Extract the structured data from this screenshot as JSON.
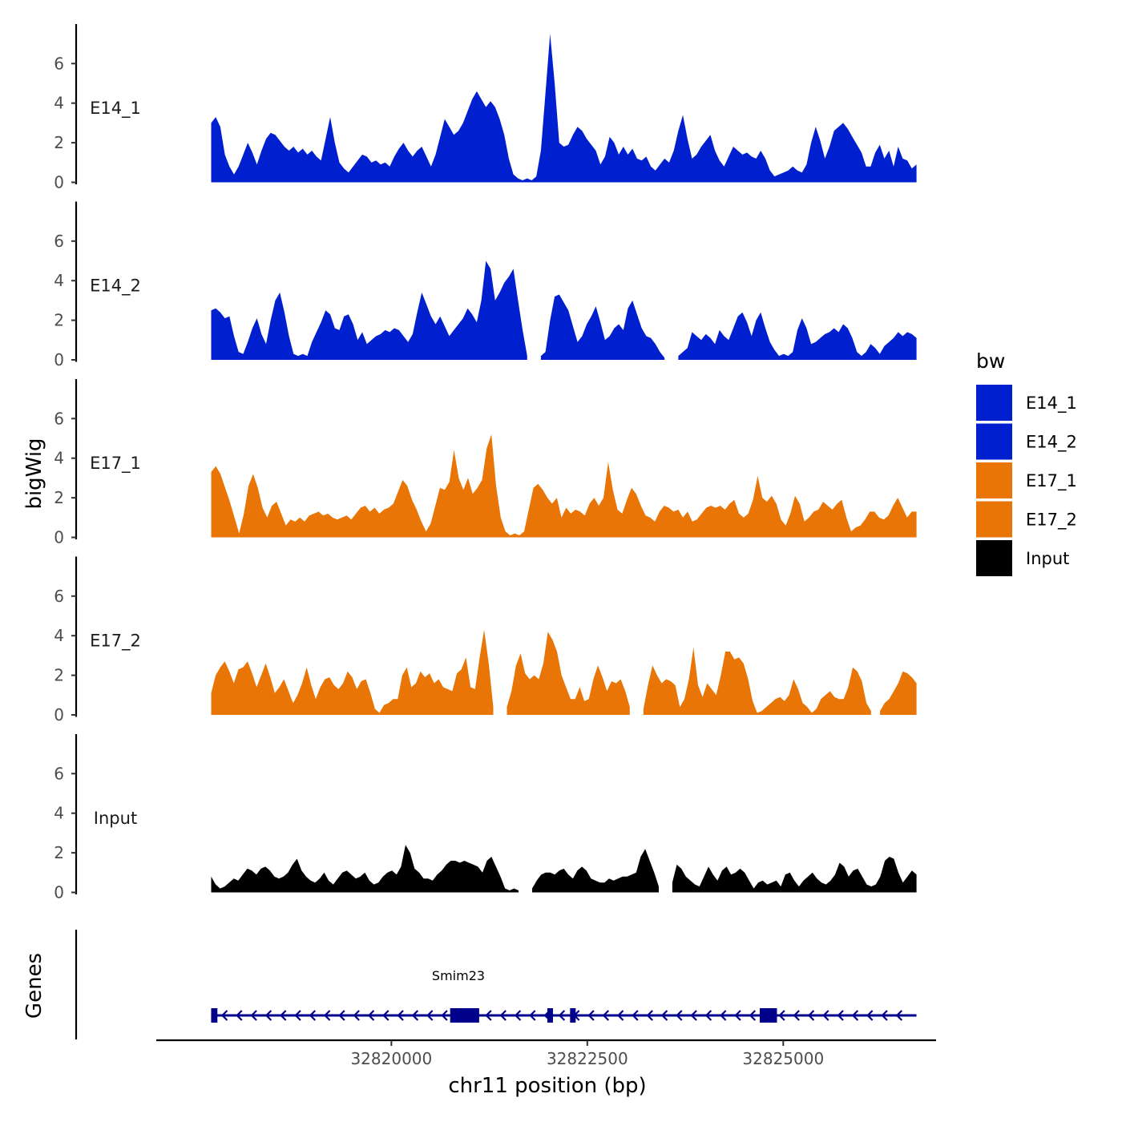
{
  "chart_data": {
    "type": "area",
    "xlabel": "chr11 position (bp)",
    "ylabel_tracks": "bigWig",
    "ylabel_genes": "Genes",
    "xlim": [
      32817000,
      32826950
    ],
    "x_ticks": [
      32820000,
      32822500,
      32825000
    ],
    "x_tick_labels": [
      "32820000",
      "32822500",
      "32825000"
    ],
    "y_range": [
      0,
      7.8
    ],
    "y_ticks": [
      0,
      2,
      4,
      6
    ],
    "y_tick_labels": [
      "0",
      "2",
      "4",
      "6"
    ],
    "x_start": 32817700,
    "x_end": 32826700,
    "legend": {
      "title": "bw",
      "entries": [
        {
          "label": "E14_1",
          "color": "#0020D0"
        },
        {
          "label": "E14_2",
          "color": "#0020D0"
        },
        {
          "label": "E17_1",
          "color": "#E87506"
        },
        {
          "label": "E17_2",
          "color": "#E87506"
        },
        {
          "label": "Input",
          "color": "#000000"
        }
      ]
    },
    "series": [
      {
        "name": "E14_1",
        "color": "#0020D0",
        "values": [
          3.0,
          3.3,
          2.8,
          1.4,
          0.8,
          0.4,
          0.8,
          1.4,
          2.0,
          1.5,
          0.9,
          1.6,
          2.2,
          2.5,
          2.4,
          2.1,
          1.8,
          1.6,
          1.8,
          1.5,
          1.7,
          1.4,
          1.6,
          1.3,
          1.1,
          2.2,
          3.3,
          2.0,
          1.0,
          0.7,
          0.5,
          0.8,
          1.1,
          1.4,
          1.3,
          1.0,
          1.1,
          0.9,
          1.0,
          0.8,
          1.3,
          1.7,
          2.0,
          1.6,
          1.3,
          1.6,
          1.8,
          1.3,
          0.8,
          1.4,
          2.3,
          3.2,
          2.8,
          2.4,
          2.6,
          3.0,
          3.6,
          4.2,
          4.6,
          4.2,
          3.8,
          4.1,
          3.8,
          3.2,
          2.4,
          1.2,
          0.4,
          0.2,
          0.1,
          0.2,
          0.1,
          0.3,
          1.6,
          4.5,
          7.5,
          5.0,
          2.0,
          1.8,
          1.9,
          2.4,
          2.8,
          2.6,
          2.2,
          1.9,
          1.6,
          0.9,
          1.3,
          2.3,
          2.0,
          1.4,
          1.8,
          1.4,
          1.7,
          1.2,
          1.1,
          1.3,
          0.8,
          0.6,
          0.9,
          1.2,
          1.0,
          1.6,
          2.6,
          3.4,
          2.2,
          1.2,
          1.4,
          1.8,
          2.1,
          2.4,
          1.6,
          1.1,
          0.8,
          1.3,
          1.8,
          1.6,
          1.4,
          1.5,
          1.3,
          1.2,
          1.6,
          1.2,
          0.6,
          0.3,
          0.4,
          0.5,
          0.6,
          0.8,
          0.6,
          0.5,
          0.9,
          2.0,
          2.8,
          2.1,
          1.2,
          1.8,
          2.6,
          2.8,
          3.0,
          2.7,
          2.3,
          1.9,
          1.5,
          0.8,
          0.8,
          1.5,
          1.9,
          1.2,
          1.6,
          0.8,
          1.8,
          1.2,
          1.1,
          0.7,
          0.9
        ]
      },
      {
        "name": "E14_2",
        "color": "#0020D0",
        "values": [
          2.5,
          2.6,
          2.4,
          2.1,
          2.2,
          1.2,
          0.4,
          0.3,
          0.9,
          1.6,
          2.1,
          1.3,
          0.8,
          2.0,
          3.0,
          3.4,
          2.4,
          1.2,
          0.3,
          0.2,
          0.3,
          0.2,
          0.9,
          1.4,
          1.9,
          2.5,
          2.3,
          1.6,
          1.5,
          2.2,
          2.3,
          1.8,
          1.0,
          1.4,
          0.8,
          1.0,
          1.2,
          1.3,
          1.5,
          1.4,
          1.6,
          1.5,
          1.2,
          0.9,
          1.3,
          2.4,
          3.4,
          2.8,
          2.2,
          1.8,
          2.2,
          1.7,
          1.2,
          1.5,
          1.8,
          2.1,
          2.6,
          2.3,
          1.9,
          3.0,
          5.0,
          4.6,
          3.0,
          3.4,
          3.9,
          4.2,
          4.6,
          3.0,
          1.5,
          0.2,
          null,
          null,
          0.2,
          0.4,
          2.0,
          3.2,
          3.3,
          2.9,
          2.5,
          1.7,
          0.9,
          1.2,
          1.8,
          2.2,
          2.7,
          1.9,
          1.0,
          1.2,
          1.6,
          1.8,
          1.5,
          2.6,
          3.0,
          2.3,
          1.6,
          1.2,
          1.1,
          0.8,
          0.4,
          0.1,
          null,
          null,
          0.2,
          0.4,
          0.6,
          1.4,
          1.2,
          1.0,
          1.3,
          1.1,
          0.8,
          1.5,
          1.2,
          1.0,
          1.6,
          2.2,
          2.4,
          1.9,
          1.2,
          2.0,
          2.4,
          1.6,
          0.9,
          0.5,
          0.2,
          0.3,
          0.2,
          0.4,
          1.5,
          2.1,
          1.6,
          0.8,
          0.9,
          1.1,
          1.3,
          1.4,
          1.6,
          1.4,
          1.8,
          1.6,
          1.1,
          0.4,
          0.2,
          0.4,
          0.8,
          0.6,
          0.3,
          0.7,
          0.9,
          1.1,
          1.4,
          1.2,
          1.4,
          1.3,
          1.1
        ]
      },
      {
        "name": "E17_1",
        "color": "#E87506",
        "values": [
          3.3,
          3.6,
          3.2,
          2.5,
          1.8,
          1.0,
          0.2,
          1.2,
          2.6,
          3.2,
          2.5,
          1.5,
          1.0,
          1.6,
          1.8,
          1.2,
          0.6,
          0.9,
          0.8,
          1.0,
          0.8,
          1.1,
          1.2,
          1.3,
          1.1,
          1.2,
          1.0,
          0.9,
          1.0,
          1.1,
          0.9,
          1.2,
          1.5,
          1.6,
          1.3,
          1.5,
          1.2,
          1.4,
          1.5,
          1.7,
          2.3,
          2.9,
          2.6,
          1.9,
          1.4,
          0.8,
          0.3,
          0.7,
          1.6,
          2.5,
          2.4,
          2.8,
          4.4,
          3.0,
          2.4,
          3.0,
          2.2,
          2.5,
          2.9,
          4.5,
          5.2,
          2.6,
          1.0,
          0.3,
          0.1,
          0.2,
          0.1,
          0.3,
          1.4,
          2.5,
          2.7,
          2.4,
          2.0,
          1.7,
          2.0,
          1.0,
          1.5,
          1.2,
          1.4,
          1.3,
          1.1,
          1.7,
          2.0,
          1.6,
          2.0,
          3.8,
          2.4,
          1.4,
          1.2,
          1.9,
          2.5,
          2.2,
          1.6,
          1.1,
          1.0,
          0.8,
          1.3,
          1.6,
          1.5,
          1.3,
          1.4,
          1.0,
          1.3,
          0.8,
          0.9,
          1.2,
          1.5,
          1.6,
          1.5,
          1.6,
          1.4,
          1.7,
          1.9,
          1.2,
          1.0,
          1.2,
          1.9,
          3.1,
          2.0,
          1.8,
          2.1,
          1.7,
          0.9,
          0.6,
          1.2,
          2.1,
          1.7,
          0.8,
          1.0,
          1.3,
          1.4,
          1.8,
          1.6,
          1.4,
          1.7,
          1.9,
          1.0,
          0.3,
          0.5,
          0.6,
          0.9,
          1.3,
          1.3,
          1.0,
          0.9,
          1.1,
          1.6,
          2.0,
          1.5,
          1.0,
          1.3,
          1.3
        ]
      },
      {
        "name": "E17_2",
        "color": "#E87506",
        "values": [
          1.1,
          2.0,
          2.4,
          2.7,
          2.2,
          1.6,
          2.3,
          2.4,
          2.7,
          2.1,
          1.4,
          2.0,
          2.6,
          1.9,
          1.1,
          1.4,
          1.8,
          1.2,
          0.6,
          1.0,
          1.6,
          2.4,
          1.5,
          0.8,
          1.4,
          1.8,
          1.9,
          1.5,
          1.3,
          1.6,
          2.2,
          1.9,
          1.3,
          1.7,
          1.8,
          1.1,
          0.3,
          0.1,
          0.5,
          0.6,
          0.8,
          0.8,
          2.0,
          2.4,
          1.4,
          1.6,
          2.2,
          1.9,
          2.1,
          1.6,
          1.8,
          1.4,
          1.3,
          1.2,
          2.1,
          2.3,
          2.9,
          1.4,
          1.3,
          2.9,
          4.3,
          2.6,
          0.4,
          null,
          null,
          0.4,
          1.2,
          2.5,
          3.1,
          2.1,
          1.8,
          2.0,
          1.8,
          2.6,
          4.2,
          3.8,
          3.2,
          2.0,
          1.4,
          0.8,
          0.8,
          1.4,
          0.7,
          0.8,
          1.8,
          2.5,
          1.9,
          1.2,
          1.7,
          1.6,
          1.8,
          1.2,
          0.4,
          null,
          null,
          0.3,
          1.5,
          2.5,
          2.0,
          1.6,
          1.8,
          1.7,
          1.5,
          0.4,
          0.8,
          1.8,
          3.4,
          1.5,
          0.9,
          1.6,
          1.3,
          1.0,
          2.0,
          3.2,
          3.2,
          2.8,
          2.9,
          2.6,
          1.8,
          0.7,
          0.1,
          0.2,
          0.4,
          0.6,
          0.8,
          0.9,
          0.7,
          1.0,
          1.8,
          1.3,
          0.6,
          0.4,
          0.1,
          0.3,
          0.8,
          1.0,
          1.2,
          0.9,
          0.8,
          0.8,
          1.4,
          2.4,
          2.2,
          1.7,
          0.6,
          0.2,
          null,
          0.2,
          0.6,
          0.8,
          1.2,
          1.6,
          2.2,
          2.1,
          1.9,
          1.6
        ]
      },
      {
        "name": "Input",
        "color": "#000000",
        "values": [
          0.8,
          0.4,
          0.2,
          0.3,
          0.5,
          0.7,
          0.6,
          0.9,
          1.2,
          1.1,
          0.9,
          1.2,
          1.3,
          1.1,
          0.8,
          0.7,
          0.8,
          1.0,
          1.4,
          1.7,
          1.1,
          0.8,
          0.6,
          0.5,
          0.7,
          1.0,
          0.6,
          0.4,
          0.7,
          1.0,
          1.1,
          0.9,
          0.7,
          0.8,
          1.0,
          0.6,
          0.4,
          0.5,
          0.8,
          1.0,
          1.1,
          0.9,
          1.3,
          2.4,
          2.0,
          1.2,
          1.0,
          0.7,
          0.7,
          0.6,
          0.9,
          1.1,
          1.4,
          1.6,
          1.6,
          1.5,
          1.6,
          1.5,
          1.4,
          1.3,
          1.0,
          1.6,
          1.8,
          1.3,
          0.8,
          0.2,
          0.1,
          0.2,
          0.1,
          null,
          null,
          0.2,
          0.6,
          0.9,
          1.0,
          1.0,
          0.9,
          1.1,
          1.2,
          0.9,
          0.7,
          1.1,
          1.3,
          1.1,
          0.7,
          0.6,
          0.5,
          0.5,
          0.7,
          0.6,
          0.7,
          0.8,
          0.8,
          0.9,
          1.0,
          1.8,
          2.2,
          1.6,
          1.0,
          0.3,
          null,
          null,
          0.5,
          1.4,
          1.2,
          0.8,
          0.6,
          0.4,
          0.3,
          0.8,
          1.3,
          0.9,
          0.6,
          1.1,
          1.3,
          0.9,
          1.0,
          1.2,
          1.0,
          0.6,
          0.2,
          0.5,
          0.6,
          0.4,
          0.5,
          0.6,
          0.3,
          0.9,
          1.0,
          0.6,
          0.3,
          0.6,
          0.8,
          1.0,
          0.7,
          0.5,
          0.4,
          0.6,
          0.9,
          1.5,
          1.3,
          0.8,
          1.1,
          1.2,
          0.8,
          0.4,
          0.3,
          0.4,
          0.8,
          1.6,
          1.8,
          1.7,
          1.0,
          0.5,
          0.8,
          1.1,
          0.9
        ]
      }
    ],
    "genes": [
      {
        "name": "Smim23",
        "strand": "-",
        "start": 32817700,
        "end": 32826700,
        "color": "#00008B",
        "exons": [
          {
            "start": 32817700,
            "end": 32817780
          },
          {
            "start": 32820750,
            "end": 32821120
          },
          {
            "start": 32821990,
            "end": 32822040
          },
          {
            "start": 32822280,
            "end": 32822330
          },
          {
            "start": 32824700,
            "end": 32824920
          }
        ]
      }
    ]
  }
}
